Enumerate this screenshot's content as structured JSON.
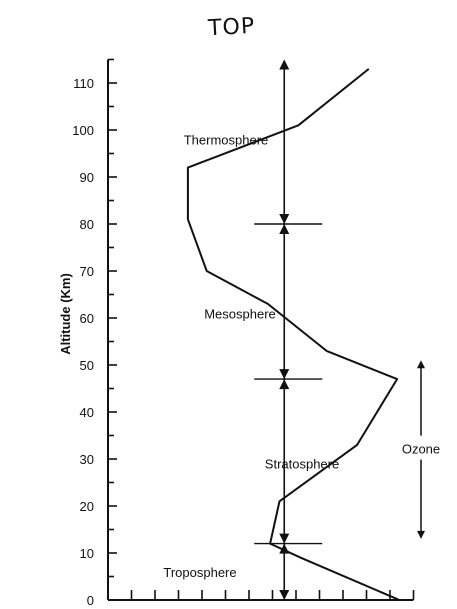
{
  "annotation": {
    "top_note": "TOP"
  },
  "chart_data": {
    "type": "line",
    "ylabel": "Altitude (Km)",
    "ylim": [
      0,
      115
    ],
    "y_ticks": [
      0,
      10,
      20,
      30,
      40,
      50,
      60,
      70,
      80,
      90,
      100,
      110
    ],
    "y_tick_labels": [
      "0",
      "10",
      "20",
      "30",
      "40",
      "50",
      "60",
      "70",
      "80",
      "90",
      "100",
      "110"
    ],
    "x_ticks_count": 13,
    "xlim": [
      0,
      13
    ],
    "series": [
      {
        "values_x": [
          12.4,
          8.2,
          6.9,
          7.3,
          10.6,
          12.3,
          9.3,
          6.8,
          4.2,
          3.4,
          3.4,
          8.1,
          11.1
        ],
        "values_y": [
          0,
          9,
          12,
          21,
          33,
          47,
          53,
          63,
          70,
          81,
          92,
          101,
          113
        ]
      }
    ],
    "layers": [
      {
        "name": "Thermosphere",
        "label_y": 98
      },
      {
        "name": "Mesosphere",
        "label_y": 61
      },
      {
        "name": "Stratosphere",
        "label_y": 29
      },
      {
        "name": "Troposphere",
        "label_y": 6
      }
    ],
    "boundaries": [
      12,
      47,
      80
    ],
    "vertical_arrow_x": 7.5,
    "ozone": {
      "label": "Ozone",
      "range": [
        13,
        51
      ]
    }
  }
}
